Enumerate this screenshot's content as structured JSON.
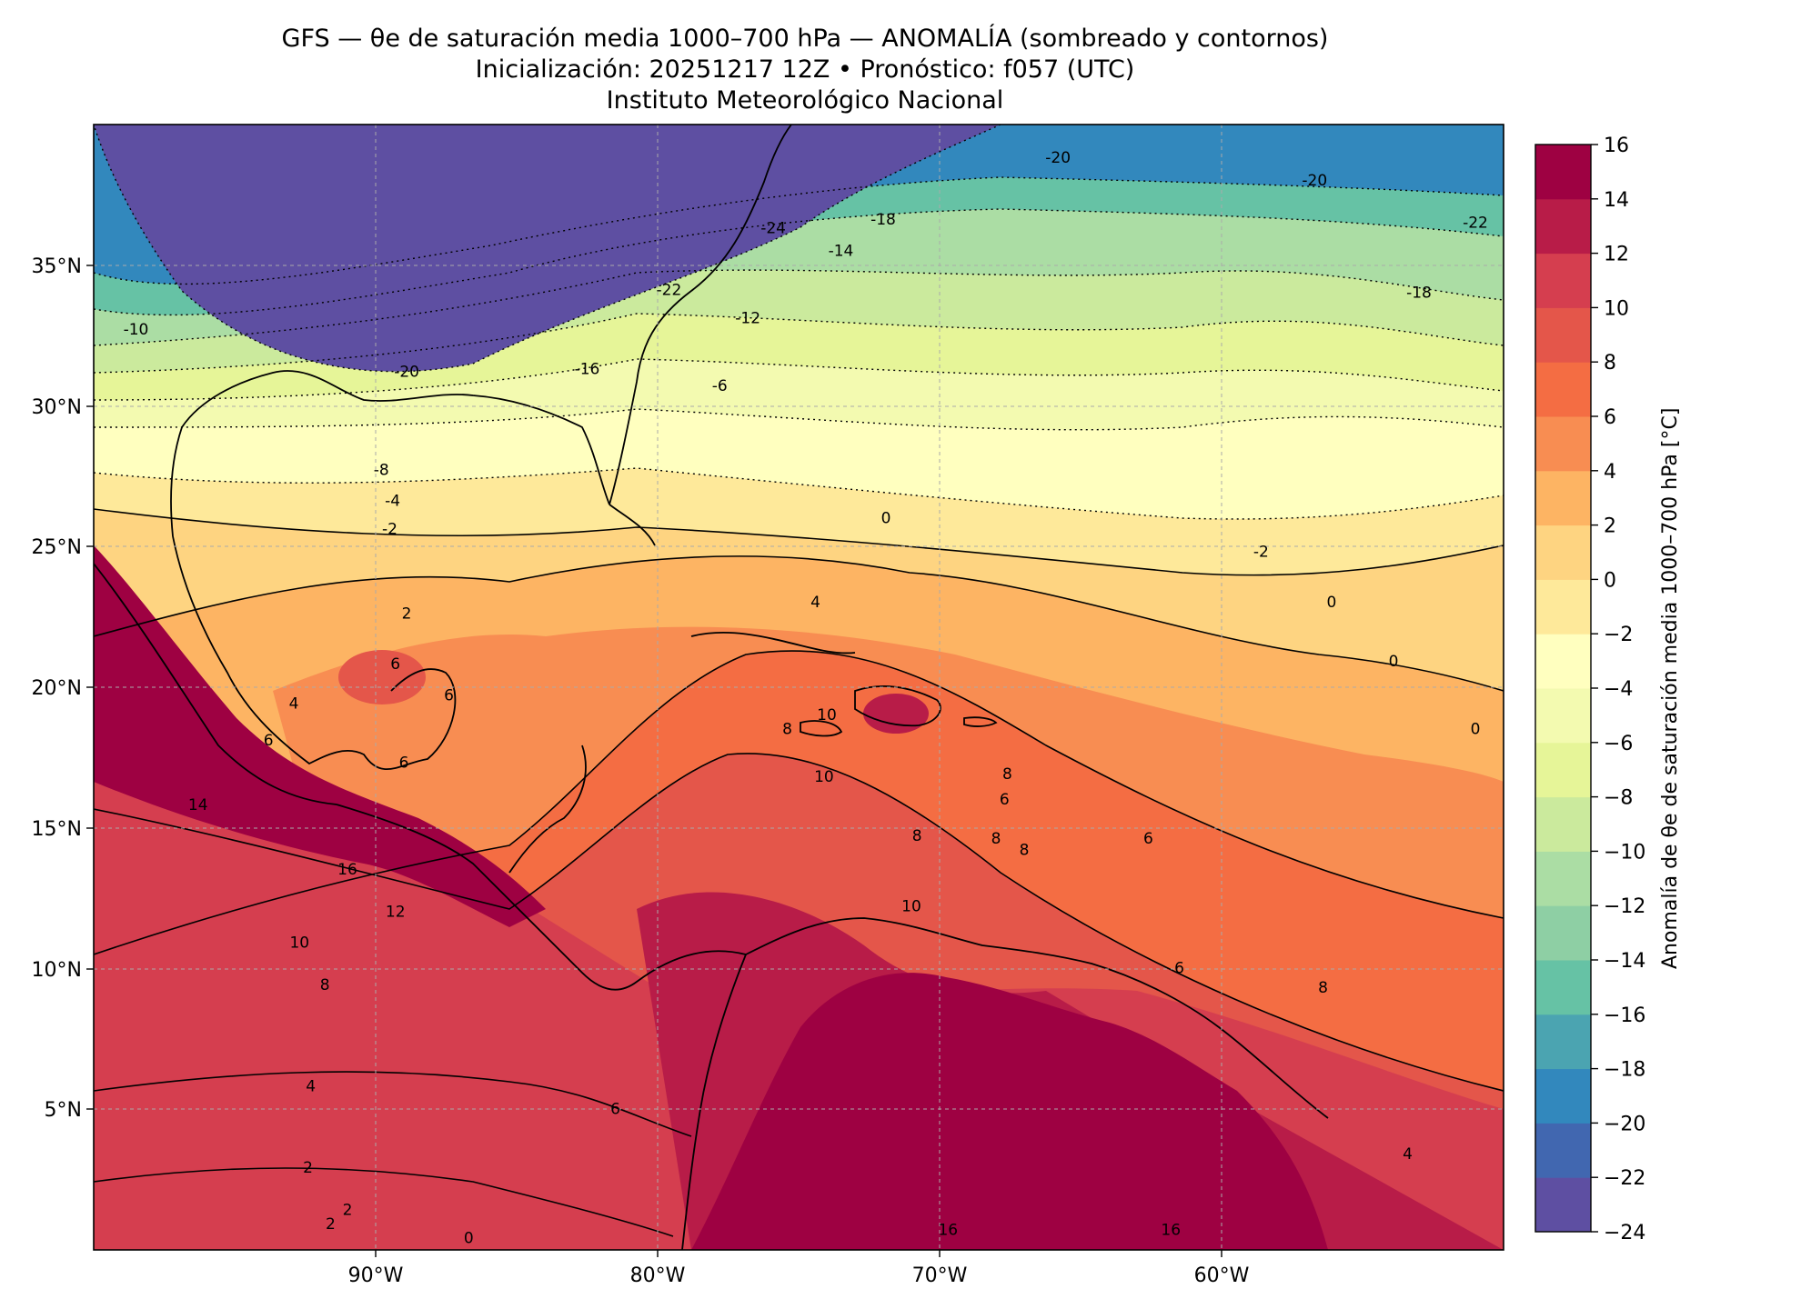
{
  "title": {
    "line1": "GFS — θe de saturación media 1000–700 hPa — ANOMALÍA (sombreado y contornos)",
    "line2": "Inicialización: 20251217 12Z   •   Pronóstico: f057 (UTC)",
    "line3": "Instituto Meteorológico Nacional"
  },
  "map": {
    "lon_range": [
      -100,
      -50
    ],
    "lat_range": [
      0,
      40
    ],
    "lon_ticks": [
      "90°W",
      "80°W",
      "70°W",
      "60°W"
    ],
    "lat_ticks": [
      "35°N",
      "30°N",
      "25°N",
      "20°N",
      "15°N",
      "10°N",
      "5°N"
    ],
    "gridlines": true,
    "coastlines": true
  },
  "colorbar": {
    "label": "Anomalía de θe de saturación media 1000–700 hPa [°C]",
    "tick_labels": [
      "16",
      "14",
      "12",
      "10",
      "8",
      "6",
      "4",
      "2",
      "0",
      "−2",
      "−4",
      "−6",
      "−8",
      "−10",
      "−12",
      "−14",
      "−16",
      "−18",
      "−20",
      "−22",
      "−24"
    ],
    "levels": [
      -24,
      -22,
      -20,
      -18,
      -16,
      -14,
      -12,
      -10,
      -8,
      -6,
      -4,
      -2,
      0,
      2,
      4,
      6,
      8,
      10,
      12,
      14,
      16
    ],
    "colors": [
      "#5e4fa2",
      "#4167b0",
      "#3288bd",
      "#4ba4b1",
      "#66c2a5",
      "#8ecfa4",
      "#abdda4",
      "#cbea9d",
      "#e6f598",
      "#f3fab0",
      "#ffffbf",
      "#fee99a",
      "#fed481",
      "#fdb463",
      "#f88d52",
      "#f46d43",
      "#e4564a",
      "#d53e4f",
      "#b81c48",
      "#9e0142"
    ]
  },
  "contour_labels": [
    {
      "text": "-20",
      "lat": 38.8,
      "lon": -65.8
    },
    {
      "text": "-20",
      "lat": 38.0,
      "lon": -56.7
    },
    {
      "text": "-22",
      "lat": 36.5,
      "lon": -51.0
    },
    {
      "text": "-24",
      "lat": 36.3,
      "lon": -75.9
    },
    {
      "text": "-18",
      "lat": 36.6,
      "lon": -72.0
    },
    {
      "text": "-14",
      "lat": 35.5,
      "lon": -73.5
    },
    {
      "text": "-22",
      "lat": 34.1,
      "lon": -79.6
    },
    {
      "text": "-12",
      "lat": 33.1,
      "lon": -76.8
    },
    {
      "text": "-18",
      "lat": 34.0,
      "lon": -53.0
    },
    {
      "text": "-10",
      "lat": 32.7,
      "lon": -98.5
    },
    {
      "text": "-20",
      "lat": 31.2,
      "lon": -88.9
    },
    {
      "text": "-16",
      "lat": 31.3,
      "lon": -82.5
    },
    {
      "text": "-6",
      "lat": 30.7,
      "lon": -77.8
    },
    {
      "text": "-8",
      "lat": 27.7,
      "lon": -89.8
    },
    {
      "text": "-4",
      "lat": 26.6,
      "lon": -89.4
    },
    {
      "text": "-2",
      "lat": 25.6,
      "lon": -89.5
    },
    {
      "text": "0",
      "lat": 26.0,
      "lon": -71.9
    },
    {
      "text": "-2",
      "lat": 24.8,
      "lon": -58.6
    },
    {
      "text": "2",
      "lat": 22.6,
      "lon": -88.9
    },
    {
      "text": "4",
      "lat": 23.0,
      "lon": -74.4
    },
    {
      "text": "0",
      "lat": 23.0,
      "lon": -56.1
    },
    {
      "text": "0",
      "lat": 20.9,
      "lon": -53.9
    },
    {
      "text": "6",
      "lat": 20.8,
      "lon": -89.3
    },
    {
      "text": "6",
      "lat": 19.7,
      "lon": -87.4
    },
    {
      "text": "10",
      "lat": 19.0,
      "lon": -74.0
    },
    {
      "text": "8",
      "lat": 18.5,
      "lon": -75.4
    },
    {
      "text": "0",
      "lat": 18.5,
      "lon": -51.0
    },
    {
      "text": "4",
      "lat": 19.4,
      "lon": -92.9
    },
    {
      "text": "6",
      "lat": 18.1,
      "lon": -93.8
    },
    {
      "text": "6",
      "lat": 17.3,
      "lon": -89.0
    },
    {
      "text": "10",
      "lat": 16.8,
      "lon": -74.1
    },
    {
      "text": "8",
      "lat": 16.9,
      "lon": -67.6
    },
    {
      "text": "6",
      "lat": 16.0,
      "lon": -67.7
    },
    {
      "text": "14",
      "lat": 15.8,
      "lon": -96.3
    },
    {
      "text": "8",
      "lat": 14.7,
      "lon": -70.8
    },
    {
      "text": "8",
      "lat": 14.6,
      "lon": -68.0
    },
    {
      "text": "8",
      "lat": 14.2,
      "lon": -67.0
    },
    {
      "text": "6",
      "lat": 14.6,
      "lon": -62.6
    },
    {
      "text": "16",
      "lat": 13.5,
      "lon": -91.0
    },
    {
      "text": "12",
      "lat": 12.0,
      "lon": -89.3
    },
    {
      "text": "10",
      "lat": 12.2,
      "lon": -71.0
    },
    {
      "text": "10",
      "lat": 10.9,
      "lon": -92.7
    },
    {
      "text": "8",
      "lat": 9.4,
      "lon": -91.8
    },
    {
      "text": "6",
      "lat": 10.0,
      "lon": -61.5
    },
    {
      "text": "8",
      "lat": 9.3,
      "lon": -56.4
    },
    {
      "text": "4",
      "lat": 5.8,
      "lon": -92.3
    },
    {
      "text": "6",
      "lat": 5.0,
      "lon": -81.5
    },
    {
      "text": "2",
      "lat": 2.9,
      "lon": -92.4
    },
    {
      "text": "2",
      "lat": 1.4,
      "lon": -91.0
    },
    {
      "text": "2",
      "lat": 0.9,
      "lon": -91.6
    },
    {
      "text": "0",
      "lat": 0.4,
      "lon": -86.7
    },
    {
      "text": "16",
      "lat": 0.7,
      "lon": -69.7
    },
    {
      "text": "16",
      "lat": 0.7,
      "lon": -61.8
    },
    {
      "text": "4",
      "lat": 3.4,
      "lon": -53.4
    }
  ]
}
